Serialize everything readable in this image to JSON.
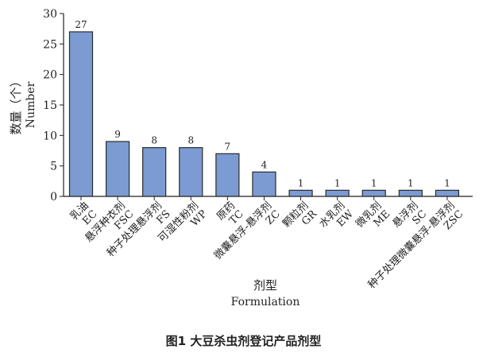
{
  "caption": "图1 大豆杀虫剂登记产品剂型",
  "chart_data": {
    "type": "bar",
    "categories": [
      [
        "乳油",
        "EC"
      ],
      [
        "悬浮种衣剂",
        "FSC"
      ],
      [
        "种子处理悬浮剂",
        "FS"
      ],
      [
        "可湿性粉剂",
        "WP"
      ],
      [
        "原药",
        "TC"
      ],
      [
        "微囊悬浮-悬浮剂",
        "ZC"
      ],
      [
        "颗粒剂",
        "GR"
      ],
      [
        "水乳剂",
        "EW"
      ],
      [
        "微乳剂",
        "ME"
      ],
      [
        "悬浮剂",
        "SC"
      ],
      [
        "种子处理微囊悬浮-悬浮剂",
        "ZSC"
      ]
    ],
    "values": [
      27,
      9,
      8,
      8,
      7,
      4,
      1,
      1,
      1,
      1,
      1
    ],
    "ylim": [
      0,
      30
    ],
    "yticks": [
      0,
      5,
      10,
      15,
      20,
      25,
      30
    ],
    "ylabel_cn": "数量（个）",
    "ylabel_en": "Number",
    "xlabel_cn": "剂型",
    "xlabel_en": "Formulation",
    "bar_color": "#7b9bd2",
    "bar_edge": "#2b2b2b",
    "grid": false
  }
}
